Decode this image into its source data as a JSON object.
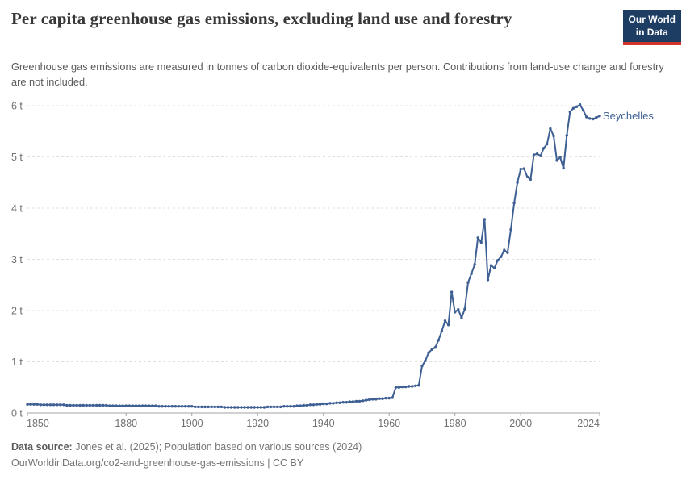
{
  "header": {
    "title": "Per capita greenhouse gas emissions, excluding land use and forestry",
    "subtitle": "Greenhouse gas emissions are measured in tonnes of carbon dioxide-equivalents per person. Contributions from land-use change and forestry are not included.",
    "logo": {
      "line1": "Our World",
      "line2": "in Data"
    }
  },
  "chart_data": {
    "type": "line",
    "title": "Per capita greenhouse gas emissions, excluding land use and forestry",
    "entity": "Seychelles",
    "unit": "tonnes of CO2-equivalents per person",
    "xlabel": "",
    "ylabel": "",
    "xlim": [
      1850,
      2024
    ],
    "ylim": [
      0,
      6.2
    ],
    "grid": true,
    "legend_position": "end-of-line",
    "x_ticks": [
      1850,
      1880,
      1900,
      1920,
      1940,
      1960,
      1980,
      2000,
      2024
    ],
    "y_ticks": [
      0,
      1,
      2,
      3,
      4,
      5,
      6
    ],
    "y_tick_format": "{v} t",
    "start_year": 1850,
    "series": [
      {
        "name": "Seychelles",
        "values": [
          0.17,
          0.17,
          0.17,
          0.17,
          0.16,
          0.16,
          0.16,
          0.16,
          0.16,
          0.16,
          0.16,
          0.16,
          0.15,
          0.15,
          0.15,
          0.15,
          0.15,
          0.15,
          0.15,
          0.15,
          0.15,
          0.15,
          0.15,
          0.15,
          0.15,
          0.14,
          0.14,
          0.14,
          0.14,
          0.14,
          0.14,
          0.14,
          0.14,
          0.14,
          0.14,
          0.14,
          0.14,
          0.14,
          0.14,
          0.14,
          0.13,
          0.13,
          0.13,
          0.13,
          0.13,
          0.13,
          0.13,
          0.13,
          0.13,
          0.13,
          0.13,
          0.12,
          0.12,
          0.12,
          0.12,
          0.12,
          0.12,
          0.12,
          0.12,
          0.12,
          0.11,
          0.11,
          0.11,
          0.11,
          0.11,
          0.11,
          0.11,
          0.11,
          0.11,
          0.11,
          0.11,
          0.11,
          0.11,
          0.12,
          0.12,
          0.12,
          0.12,
          0.12,
          0.13,
          0.13,
          0.13,
          0.13,
          0.14,
          0.14,
          0.15,
          0.15,
          0.16,
          0.16,
          0.17,
          0.17,
          0.18,
          0.18,
          0.19,
          0.19,
          0.2,
          0.2,
          0.21,
          0.21,
          0.22,
          0.22,
          0.23,
          0.23,
          0.24,
          0.25,
          0.26,
          0.27,
          0.27,
          0.28,
          0.28,
          0.29,
          0.29,
          0.3,
          0.5,
          0.5,
          0.51,
          0.51,
          0.52,
          0.52,
          0.53,
          0.54,
          0.92,
          1.02,
          1.18,
          1.24,
          1.28,
          1.42,
          1.6,
          1.8,
          1.72,
          2.36,
          1.97,
          2.02,
          1.86,
          2.03,
          2.55,
          2.72,
          2.9,
          3.42,
          3.33,
          3.78,
          2.6,
          2.88,
          2.83,
          2.98,
          3.05,
          3.18,
          3.13,
          3.58,
          4.1,
          4.5,
          4.76,
          4.77,
          4.61,
          4.56,
          5.04,
          5.06,
          5.02,
          5.17,
          5.25,
          5.55,
          5.41,
          4.93,
          4.99,
          4.78,
          5.42,
          5.88,
          5.95,
          5.98,
          6.02,
          5.91,
          5.78,
          5.75,
          5.74,
          5.77,
          5.8
        ]
      }
    ]
  },
  "footer": {
    "datasource_label": "Data source:",
    "datasource_text": " Jones et al. (2025); Population based on various sources (2024)",
    "url_line": "OurWorldinData.org/co2-and-greenhouse-gas-emissions | CC BY"
  },
  "colors": {
    "line": "#3e5f93",
    "entity_label": "#3e5f93",
    "grid": "#e0e0e0",
    "axis": "#a3a3a3",
    "tick_label": "#707070",
    "logo_bg": "#1d3d63",
    "logo_red": "#d0342c"
  }
}
